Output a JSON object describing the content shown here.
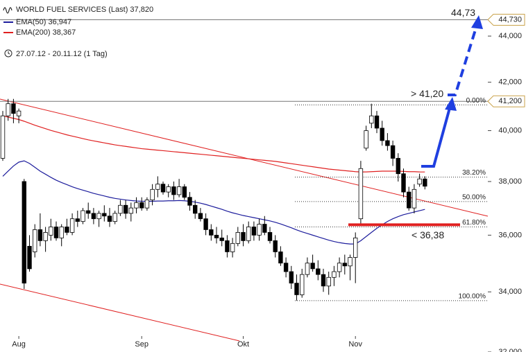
{
  "chart_data": {
    "type": "candlestick",
    "title": "WORLD FUEL SERVICES (Last) 37,820",
    "subtitle": "27.07.12 - 20.11.12 (1 Tag)",
    "log_scale": true,
    "ylim": [
      32,
      45.63
    ],
    "yticks": [
      {
        "value": 32,
        "label": "32,000"
      },
      {
        "value": 34,
        "label": "34,000"
      },
      {
        "value": 36,
        "label": "36,000"
      },
      {
        "value": 38,
        "label": "38,000"
      },
      {
        "value": 40,
        "label": "40,000"
      },
      {
        "value": 42,
        "label": "42,000"
      },
      {
        "value": 44,
        "label": "44,000"
      }
    ],
    "categories": [
      null,
      null,
      null,
      "Aug",
      null,
      null,
      null,
      null,
      null,
      null,
      null,
      null,
      null,
      null,
      null,
      null,
      null,
      null,
      null,
      null,
      null,
      null,
      null,
      null,
      null,
      null,
      "Sep",
      null,
      null,
      null,
      null,
      null,
      null,
      null,
      null,
      null,
      null,
      null,
      null,
      null,
      null,
      null,
      null,
      null,
      null,
      "Okt",
      null,
      null,
      null,
      null,
      null,
      null,
      null,
      null,
      null,
      null,
      null,
      null,
      null,
      null,
      null,
      null,
      null,
      null,
      null,
      null,
      "Nov",
      null,
      null,
      null,
      null,
      null,
      null,
      null,
      null,
      null,
      null,
      null,
      null,
      null
    ],
    "up_color": "#ffffff",
    "down_color": "#000000",
    "ohlc": {
      "open": [
        38.9,
        40.6,
        41.1,
        40.6,
        38.0,
        35.6,
        35.4,
        36.2,
        35.8,
        36.0,
        36.3,
        35.9,
        36.3,
        36.1,
        36.6,
        36.5,
        36.9,
        36.8,
        36.6,
        36.8,
        36.7,
        36.5,
        36.8,
        37.1,
        36.8,
        37.0,
        37.2,
        37.0,
        37.3,
        37.7,
        37.9,
        37.6,
        37.8,
        37.5,
        37.8,
        37.4,
        37.1,
        36.8,
        36.6,
        36.2,
        36.0,
        35.9,
        35.8,
        35.4,
        35.7,
        36.1,
        35.8,
        36.3,
        36.0,
        36.4,
        36.1,
        35.8,
        35.4,
        35.0,
        34.7,
        34.3,
        33.9,
        34.6,
        35.0,
        34.8,
        34.6,
        34.2,
        34.5,
        34.7,
        35.0,
        34.9,
        35.2,
        36.6,
        39.3,
        40.3,
        40.6,
        40.1,
        39.6,
        39.4,
        38.9,
        38.3,
        37.6,
        37.0,
        37.9,
        38.1
      ],
      "high": [
        40.8,
        41.3,
        41.3,
        40.9,
        38.1,
        36.0,
        36.4,
        36.8,
        36.3,
        36.6,
        36.5,
        36.4,
        36.6,
        36.8,
        36.9,
        37.0,
        37.2,
        37.0,
        36.9,
        37.1,
        37.0,
        36.9,
        37.3,
        37.3,
        37.2,
        37.4,
        37.4,
        37.4,
        37.9,
        38.2,
        38.0,
        37.9,
        38.0,
        38.1,
        37.9,
        37.6,
        37.3,
        37.0,
        36.8,
        36.4,
        36.3,
        36.2,
        36.0,
        35.9,
        36.3,
        36.4,
        36.5,
        36.5,
        36.6,
        36.7,
        36.3,
        36.0,
        35.6,
        35.2,
        34.9,
        34.6,
        34.8,
        35.2,
        35.3,
        35.1,
        34.8,
        34.7,
        34.9,
        35.2,
        35.3,
        35.3,
        36.1,
        38.8,
        40.2,
        41.1,
        40.8,
        40.4,
        39.9,
        39.6,
        39.1,
        38.5,
        37.8,
        37.9,
        38.3,
        38.2
      ],
      "low": [
        38.8,
        40.4,
        40.3,
        40.3,
        34.1,
        34.7,
        35.2,
        35.6,
        35.4,
        35.8,
        35.8,
        35.6,
        36.0,
        36.0,
        36.3,
        36.4,
        36.6,
        36.4,
        36.3,
        36.5,
        36.3,
        36.4,
        36.7,
        36.6,
        36.5,
        36.8,
        36.9,
        36.9,
        37.1,
        37.4,
        37.5,
        37.4,
        37.3,
        37.4,
        37.3,
        36.9,
        36.6,
        36.5,
        36.0,
        35.8,
        35.7,
        35.6,
        35.2,
        35.2,
        35.6,
        35.6,
        35.7,
        35.8,
        35.8,
        36.0,
        35.7,
        35.2,
        34.9,
        34.5,
        34.1,
        33.7,
        33.8,
        34.5,
        34.7,
        34.4,
        34.0,
        33.9,
        34.2,
        34.5,
        34.6,
        34.4,
        34.3,
        36.4,
        39.2,
        40.1,
        39.9,
        39.4,
        39.2,
        38.6,
        38.0,
        37.4,
        36.9,
        36.8,
        37.8,
        37.7
      ],
      "close": [
        40.6,
        41.1,
        40.7,
        40.8,
        34.3,
        34.8,
        36.2,
        35.8,
        36.1,
        36.3,
        35.9,
        36.3,
        36.1,
        36.6,
        36.5,
        36.9,
        36.8,
        36.6,
        36.8,
        36.7,
        36.5,
        36.8,
        37.1,
        36.8,
        37.0,
        37.2,
        37.0,
        37.3,
        37.7,
        37.9,
        37.6,
        37.8,
        37.5,
        37.8,
        37.4,
        37.1,
        36.8,
        36.6,
        36.2,
        36.0,
        35.9,
        35.8,
        35.4,
        35.7,
        36.1,
        35.8,
        36.3,
        36.0,
        36.4,
        36.1,
        35.8,
        35.4,
        35.0,
        34.7,
        34.3,
        33.9,
        34.6,
        35.0,
        34.8,
        34.6,
        34.2,
        34.5,
        34.7,
        35.0,
        34.9,
        35.2,
        35.9,
        38.5,
        40.0,
        40.6,
        40.1,
        39.6,
        39.4,
        38.9,
        38.3,
        37.6,
        37.0,
        37.7,
        38.1,
        37.82
      ]
    },
    "series": [
      {
        "name": "EMA(50) 36,947",
        "color": "#1c1c9c",
        "values": [
          38.2,
          38.4,
          38.6,
          38.75,
          38.8,
          38.7,
          38.55,
          38.4,
          38.28,
          38.16,
          38.05,
          37.96,
          37.88,
          37.8,
          37.73,
          37.67,
          37.61,
          37.55,
          37.5,
          37.45,
          37.4,
          37.36,
          37.33,
          37.3,
          37.28,
          37.26,
          37.25,
          37.25,
          37.25,
          37.26,
          37.26,
          37.27,
          37.27,
          37.28,
          37.27,
          37.25,
          37.22,
          37.18,
          37.13,
          37.07,
          37.01,
          36.95,
          36.88,
          36.82,
          36.77,
          36.72,
          36.68,
          36.64,
          36.6,
          36.56,
          36.52,
          36.47,
          36.41,
          36.34,
          36.27,
          36.19,
          36.12,
          36.06,
          36.0,
          35.94,
          35.88,
          35.82,
          35.77,
          35.73,
          35.7,
          35.68,
          35.68,
          35.8,
          35.95,
          36.1,
          36.25,
          36.38,
          36.5,
          36.6,
          36.68,
          36.75,
          36.8,
          36.85,
          36.9,
          36.947
        ]
      },
      {
        "name": "EMA(200) 38,367",
        "color": "#e02020",
        "values": [
          40.6,
          40.55,
          40.5,
          40.45,
          40.38,
          40.3,
          40.22,
          40.15,
          40.08,
          40.01,
          39.95,
          39.89,
          39.83,
          39.78,
          39.73,
          39.68,
          39.63,
          39.59,
          39.55,
          39.51,
          39.47,
          39.43,
          39.4,
          39.37,
          39.34,
          39.31,
          39.28,
          39.26,
          39.24,
          39.22,
          39.2,
          39.18,
          39.16,
          39.14,
          39.12,
          39.1,
          39.08,
          39.06,
          39.04,
          39.02,
          39.0,
          38.98,
          38.96,
          38.94,
          38.92,
          38.9,
          38.88,
          38.86,
          38.84,
          38.82,
          38.8,
          38.78,
          38.75,
          38.72,
          38.69,
          38.66,
          38.63,
          38.6,
          38.57,
          38.54,
          38.51,
          38.48,
          38.46,
          38.44,
          38.42,
          38.4,
          38.38,
          38.37,
          38.37,
          38.38,
          38.39,
          38.4,
          38.4,
          38.4,
          38.4,
          38.39,
          38.38,
          38.38,
          38.37,
          38.367
        ]
      }
    ],
    "fib_levels": [
      {
        "label": "0.00%",
        "value": 41.05
      },
      {
        "label": "38.20%",
        "value": 38.17
      },
      {
        "label": "50.00%",
        "value": 37.24
      },
      {
        "label": "61.80%",
        "value": 36.3
      },
      {
        "label": "100.00%",
        "value": 33.7
      }
    ],
    "price_tags": [
      {
        "value": 44.73,
        "label": "44,730"
      },
      {
        "value": 41.2,
        "label": "41,200"
      }
    ],
    "annotations": [
      {
        "text": "44,73",
        "value": 44.73,
        "color": "#1f3fe0"
      },
      {
        "text": "> 41,20",
        "value": 41.2,
        "color": "#1f3fe0"
      },
      {
        "text": "< 36,38",
        "value": 36.38,
        "color": "#e02020"
      }
    ]
  }
}
